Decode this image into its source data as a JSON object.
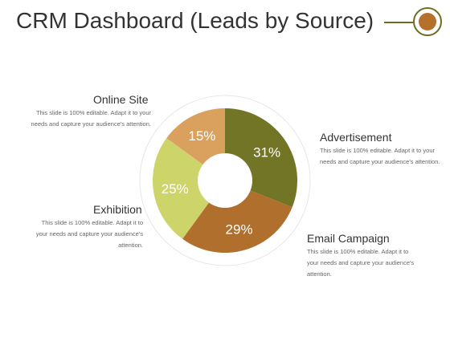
{
  "title": "CRM Dashboard (Leads by Source)",
  "colors": {
    "accent_line": "#6b6d20",
    "accent_circle": "#b5702b"
  },
  "labels": {
    "online_site": {
      "title": "Online Site",
      "desc": "This slide is 100% editable. Adapt it to your needs and capture your audience's attention."
    },
    "exhibition": {
      "title": "Exhibition",
      "desc": "This slide is 100% editable. Adapt it to your needs and capture your audience's attention."
    },
    "advertisement": {
      "title": "Advertisement",
      "desc": "This slide is 100% editable. Adapt it to your needs and capture your audience's attention."
    },
    "email_campaign": {
      "title": "Email Campaign",
      "desc": "This slide is 100% editable. Adapt it to your needs and capture your audience's attention."
    }
  },
  "chart_data": {
    "type": "pie",
    "title": "",
    "series": [
      {
        "name": "Advertisement",
        "value": 31,
        "label": "31%",
        "color": "#727426"
      },
      {
        "name": "Email Campaign",
        "value": 29,
        "label": "29%",
        "color": "#b06f2c"
      },
      {
        "name": "Exhibition",
        "value": 25,
        "label": "25%",
        "color": "#cdd46a"
      },
      {
        "name": "Online Site",
        "value": 15,
        "label": "15%",
        "color": "#d9a05e"
      }
    ]
  }
}
